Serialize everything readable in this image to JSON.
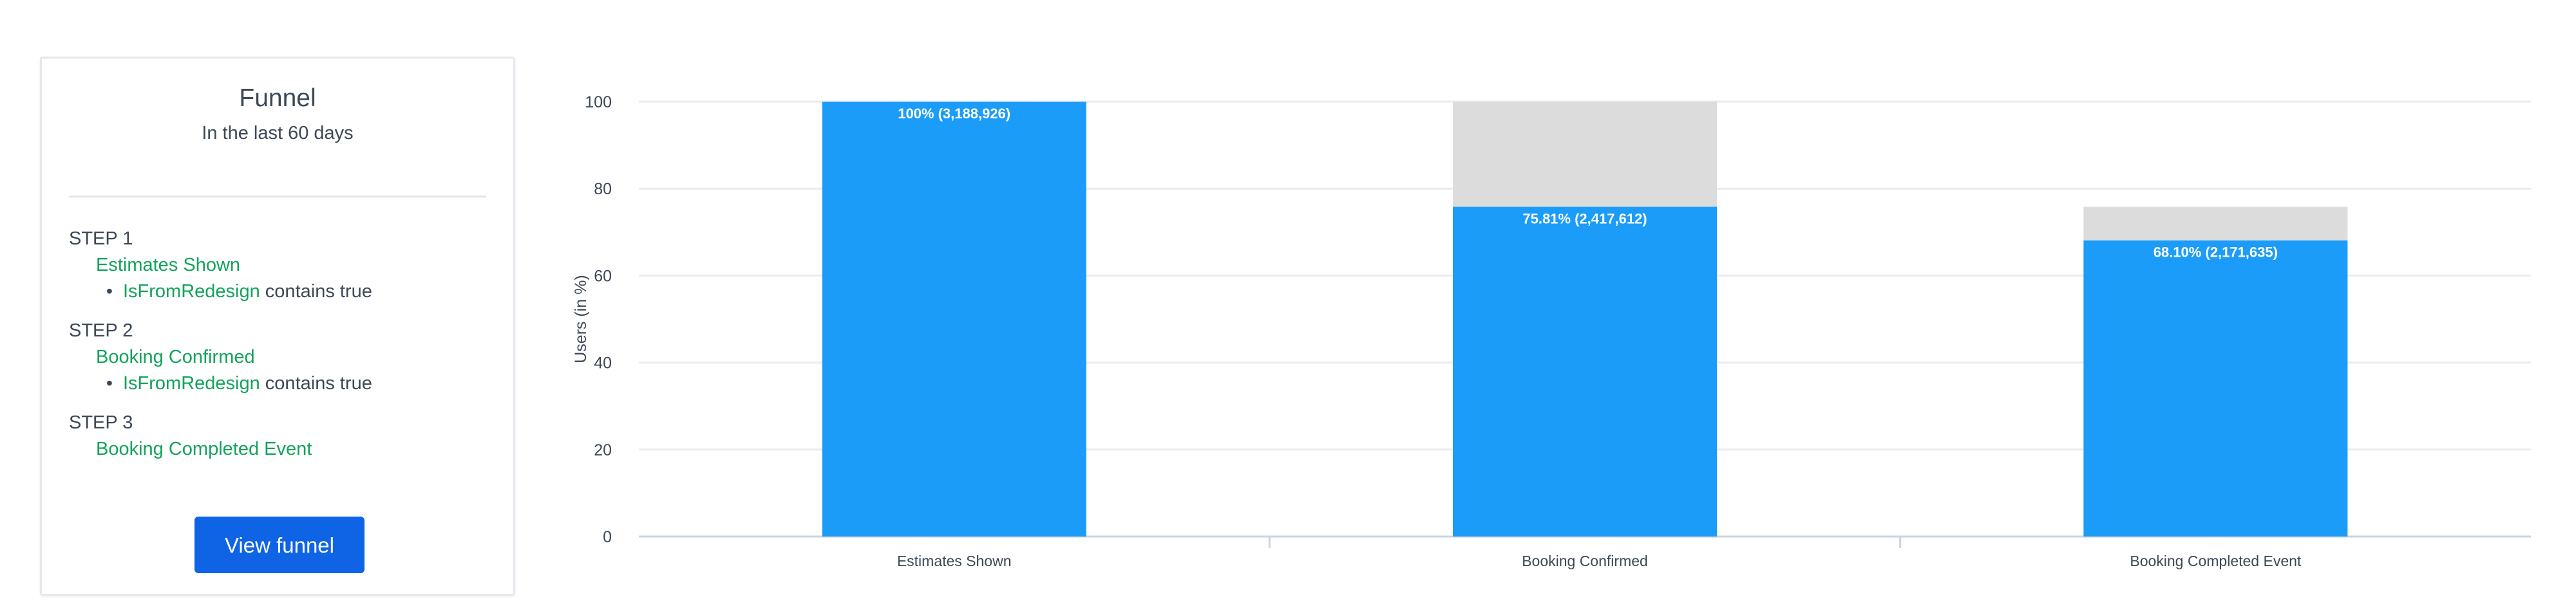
{
  "funnel_card": {
    "title": "Funnel",
    "subtitle": "In the last 60 days",
    "steps": [
      {
        "label": "STEP 1",
        "event": "Estimates Shown",
        "filter": {
          "property": "IsFromRedesign",
          "rest": " contains true"
        }
      },
      {
        "label": "STEP 2",
        "event": "Booking Confirmed",
        "filter": {
          "property": "IsFromRedesign",
          "rest": " contains true"
        }
      },
      {
        "label": "STEP 3",
        "event": "Booking Completed Event"
      }
    ],
    "view_button_label": "View funnel"
  },
  "colors": {
    "bar": "#1b9cf9",
    "remainder": "#dcdcdc",
    "button": "#0f64e6",
    "event_text": "#12a35b"
  },
  "chart_data": {
    "type": "bar",
    "stacked": true,
    "categories": [
      "Estimates Shown",
      "Booking Confirmed",
      "Booking Completed Event"
    ],
    "series": [
      {
        "values": [
          100,
          75.81,
          68.1
        ]
      },
      {
        "values": [
          0,
          24.19,
          7.71
        ]
      }
    ],
    "data_labels": [
      "100% (3,188,926)",
      "75.81% (2,417,612)",
      "68.10% (2,171,635)"
    ],
    "xlabel": "",
    "ylabel": "Users (in %)",
    "ylim": [
      0,
      100
    ],
    "yticks": [
      0,
      20,
      40,
      60,
      80,
      100
    ],
    "grid": true
  }
}
